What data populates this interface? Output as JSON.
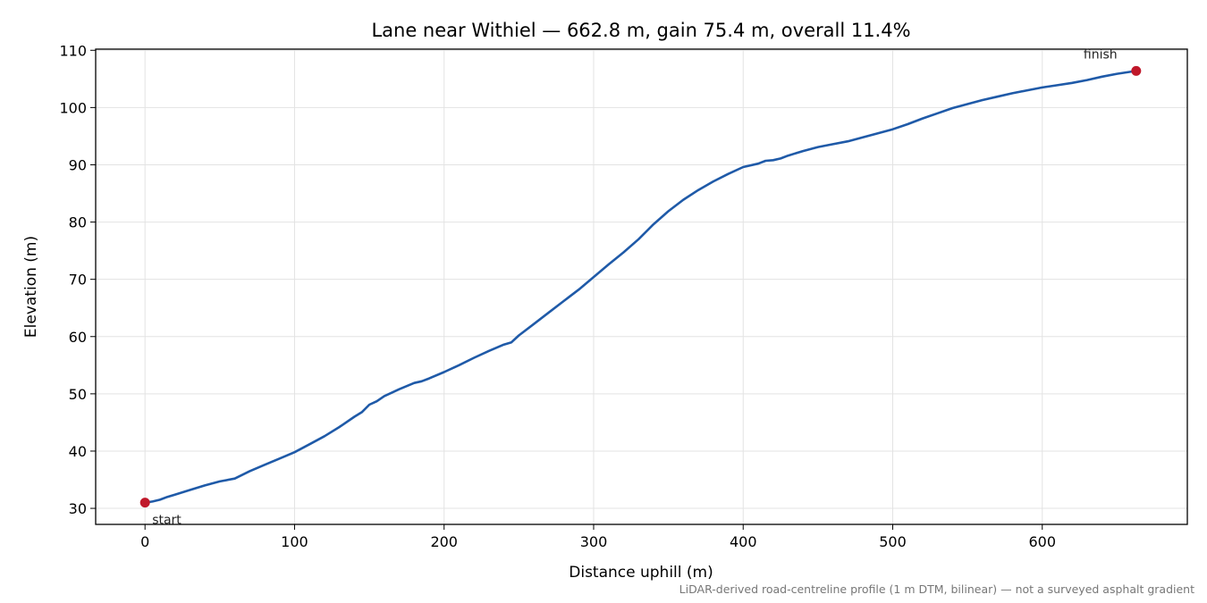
{
  "chart_data": {
    "type": "line",
    "title": "Lane near Withiel — 662.8 m, gain 75.4 m, overall 11.4%",
    "xlabel": "Distance uphill (m)",
    "ylabel": "Elevation (m)",
    "footnote": "LiDAR-derived road-centreline profile (1 m DTM, bilinear) — not a surveyed asphalt gradient",
    "xlim": [
      -33,
      697
    ],
    "ylim": [
      27.2,
      110.2
    ],
    "xticks": [
      0,
      100,
      200,
      300,
      400,
      500,
      600
    ],
    "yticks": [
      30,
      40,
      50,
      60,
      70,
      80,
      90,
      100,
      110
    ],
    "grid": true,
    "line_color": "#1f5aa8",
    "marker_color": "#c0182a",
    "series": [
      {
        "x": [
          0,
          5,
          10,
          15,
          20,
          30,
          40,
          50,
          60,
          70,
          80,
          90,
          100,
          110,
          120,
          130,
          140,
          145,
          150,
          155,
          160,
          165,
          170,
          180,
          185,
          190,
          200,
          210,
          220,
          230,
          240,
          245,
          250,
          260,
          270,
          280,
          290,
          300,
          310,
          320,
          330,
          340,
          350,
          360,
          370,
          380,
          390,
          400,
          410,
          415,
          420,
          425,
          430,
          440,
          450,
          460,
          470,
          480,
          490,
          500,
          510,
          520,
          530,
          540,
          550,
          560,
          570,
          580,
          590,
          600,
          610,
          620,
          630,
          640,
          650,
          662.8
        ],
        "y": [
          31.0,
          31.2,
          31.5,
          32.0,
          32.4,
          33.2,
          34.0,
          34.7,
          35.2,
          36.5,
          37.6,
          38.7,
          39.8,
          41.2,
          42.6,
          44.2,
          46.0,
          46.8,
          48.1,
          48.7,
          49.6,
          50.2,
          50.8,
          51.9,
          52.2,
          52.7,
          53.8,
          55.0,
          56.3,
          57.5,
          58.6,
          59.0,
          60.2,
          62.2,
          64.2,
          66.2,
          68.2,
          70.4,
          72.6,
          74.7,
          77.0,
          79.6,
          81.9,
          83.9,
          85.6,
          87.1,
          88.4,
          89.6,
          90.2,
          90.7,
          90.8,
          91.1,
          91.6,
          92.4,
          93.1,
          93.6,
          94.1,
          94.8,
          95.5,
          96.2,
          97.1,
          98.1,
          99.0,
          99.9,
          100.6,
          101.3,
          101.9,
          102.5,
          103.0,
          103.5,
          103.9,
          104.3,
          104.8,
          105.4,
          105.9,
          106.4
        ]
      }
    ],
    "annotations": [
      {
        "label": "start",
        "x": 0,
        "y": 31.0
      },
      {
        "label": "finish",
        "x": 662.8,
        "y": 106.4
      }
    ]
  }
}
